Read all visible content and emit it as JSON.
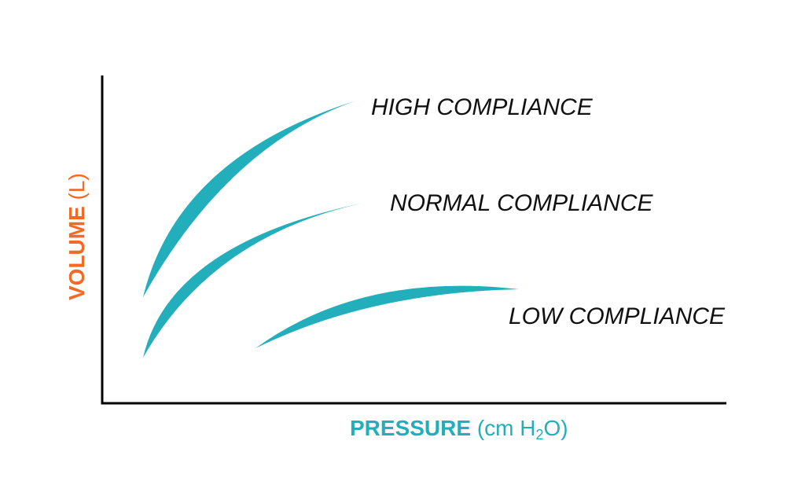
{
  "colors": {
    "curve": "#23aebb",
    "x_axis_label": "#23aebb",
    "y_axis_label": "#f26a24",
    "axis": "#000000",
    "text": "#111111"
  },
  "x_axis": {
    "label_bold": "PRESSURE",
    "label_unit_prefix": "(cm H",
    "label_unit_sub": "2",
    "label_unit_suffix": "O)"
  },
  "y_axis": {
    "label_bold": "VOLUME",
    "label_unit": "(L)"
  },
  "curves": [
    {
      "label": "HIGH COMPLIANCE"
    },
    {
      "label": "NORMAL COMPLIANCE"
    },
    {
      "label": "LOW COMPLIANCE"
    }
  ]
}
